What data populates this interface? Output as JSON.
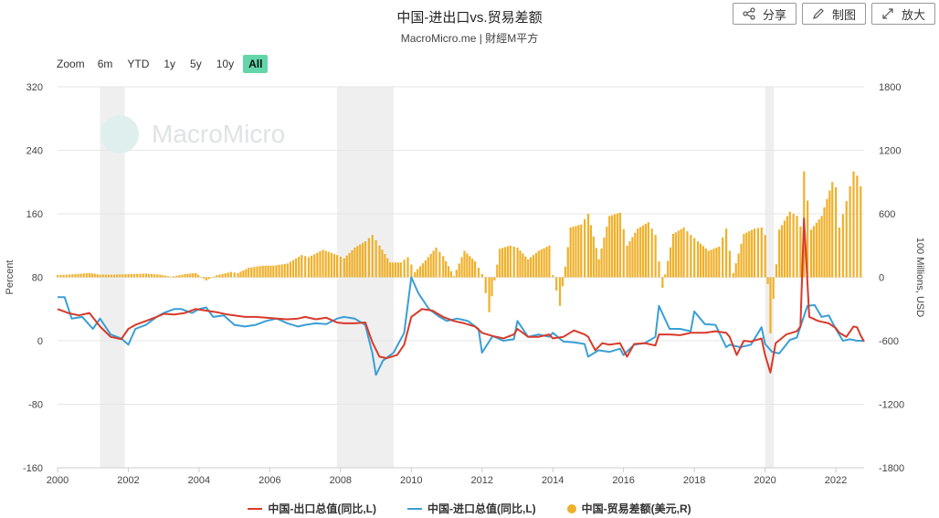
{
  "title": "中国-进出口vs.贸易差额",
  "subtitle": "MacroMicro.me | 財經M平方",
  "watermark": "MacroMicro",
  "buttons": [
    {
      "label": "分享",
      "icon": "share-icon"
    },
    {
      "label": "制图",
      "icon": "pencil-icon"
    },
    {
      "label": "放大",
      "icon": "expand-icon"
    }
  ],
  "zoom": {
    "label": "Zoom",
    "options": [
      "6m",
      "YTD",
      "1y",
      "5y",
      "10y",
      "All"
    ],
    "selected": "All"
  },
  "colors": {
    "export": "#d83a2a",
    "import": "#3a9fd6",
    "balance": "#efb02a",
    "recession": "#efefef",
    "zoom_active": "#62d6a8"
  },
  "chart_data": {
    "type": "line",
    "x_range": [
      2000,
      2022.8
    ],
    "xticks": [
      "2000",
      "2002",
      "2004",
      "2006",
      "2008",
      "2010",
      "2012",
      "2014",
      "2016",
      "2018",
      "2020",
      "2022"
    ],
    "left_axis": {
      "label": "Percent",
      "range": [
        -160,
        320
      ],
      "ticks": [
        "320",
        "240",
        "160",
        "80",
        "0",
        "-80",
        "-160"
      ]
    },
    "right_axis": {
      "label": "100 Millions, USD",
      "range": [
        -1800,
        1800
      ],
      "ticks": [
        "1800",
        "1200",
        "600",
        "0",
        "-600",
        "-1200",
        "-1800"
      ]
    },
    "shaded_periods": [
      [
        2001.2,
        2001.9
      ],
      [
        2007.9,
        2009.5
      ],
      [
        2020.0,
        2020.25
      ]
    ],
    "series": [
      {
        "name": "中国-出口总值(同比,L)",
        "axis": "left",
        "points": [
          [
            2000.0,
            40
          ],
          [
            2000.3,
            35
          ],
          [
            2000.6,
            32
          ],
          [
            2000.9,
            35
          ],
          [
            2001.2,
            18
          ],
          [
            2001.5,
            5
          ],
          [
            2001.8,
            2
          ],
          [
            2002.0,
            15
          ],
          [
            2002.2,
            20
          ],
          [
            2002.5,
            25
          ],
          [
            2002.8,
            30
          ],
          [
            2003.0,
            34
          ],
          [
            2003.3,
            33
          ],
          [
            2003.6,
            35
          ],
          [
            2003.9,
            40
          ],
          [
            2004.2,
            38
          ],
          [
            2004.5,
            36
          ],
          [
            2004.8,
            33
          ],
          [
            2005.0,
            32
          ],
          [
            2005.3,
            30
          ],
          [
            2005.6,
            30
          ],
          [
            2005.9,
            29
          ],
          [
            2006.2,
            28
          ],
          [
            2006.5,
            27
          ],
          [
            2006.8,
            28
          ],
          [
            2007.0,
            30
          ],
          [
            2007.3,
            27
          ],
          [
            2007.6,
            29
          ],
          [
            2007.9,
            23
          ],
          [
            2008.1,
            22
          ],
          [
            2008.4,
            22
          ],
          [
            2008.7,
            23
          ],
          [
            2008.9,
            -2
          ],
          [
            2009.1,
            -20
          ],
          [
            2009.3,
            -22
          ],
          [
            2009.6,
            -18
          ],
          [
            2009.8,
            -5
          ],
          [
            2010.0,
            30
          ],
          [
            2010.3,
            40
          ],
          [
            2010.6,
            38
          ],
          [
            2010.9,
            30
          ],
          [
            2011.2,
            25
          ],
          [
            2011.5,
            22
          ],
          [
            2011.8,
            18
          ],
          [
            2012.0,
            10
          ],
          [
            2012.3,
            6
          ],
          [
            2012.6,
            3
          ],
          [
            2012.9,
            8
          ],
          [
            2013.0,
            15
          ],
          [
            2013.3,
            5
          ],
          [
            2013.6,
            5
          ],
          [
            2013.9,
            8
          ],
          [
            2014.0,
            3
          ],
          [
            2014.3,
            5
          ],
          [
            2014.6,
            13
          ],
          [
            2014.9,
            8
          ],
          [
            2015.0,
            5
          ],
          [
            2015.2,
            -12
          ],
          [
            2015.4,
            -3
          ],
          [
            2015.6,
            -5
          ],
          [
            2015.9,
            -3
          ],
          [
            2016.1,
            -20
          ],
          [
            2016.3,
            -4
          ],
          [
            2016.6,
            -3
          ],
          [
            2016.9,
            -6
          ],
          [
            2017.0,
            8
          ],
          [
            2017.3,
            8
          ],
          [
            2017.6,
            7
          ],
          [
            2017.9,
            10
          ],
          [
            2018.0,
            10
          ],
          [
            2018.3,
            10
          ],
          [
            2018.6,
            12
          ],
          [
            2018.9,
            10
          ],
          [
            2019.0,
            5
          ],
          [
            2019.2,
            -18
          ],
          [
            2019.4,
            0
          ],
          [
            2019.6,
            -1
          ],
          [
            2019.9,
            3
          ],
          [
            2020.0,
            -18
          ],
          [
            2020.15,
            -40
          ],
          [
            2020.3,
            -3
          ],
          [
            2020.6,
            8
          ],
          [
            2020.9,
            12
          ],
          [
            2021.0,
            18
          ],
          [
            2021.1,
            154
          ],
          [
            2021.25,
            30
          ],
          [
            2021.5,
            25
          ],
          [
            2021.8,
            22
          ],
          [
            2022.0,
            16
          ],
          [
            2022.1,
            10
          ],
          [
            2022.3,
            5
          ],
          [
            2022.5,
            18
          ],
          [
            2022.6,
            17
          ],
          [
            2022.7,
            7
          ],
          [
            2022.8,
            -1
          ]
        ]
      },
      {
        "name": "中国-进口总值(同比,L)",
        "axis": "left",
        "points": [
          [
            2000.0,
            55
          ],
          [
            2000.2,
            55
          ],
          [
            2000.4,
            28
          ],
          [
            2000.7,
            30
          ],
          [
            2001.0,
            15
          ],
          [
            2001.2,
            28
          ],
          [
            2001.5,
            8
          ],
          [
            2001.8,
            3
          ],
          [
            2002.0,
            -5
          ],
          [
            2002.2,
            15
          ],
          [
            2002.5,
            20
          ],
          [
            2002.8,
            30
          ],
          [
            2003.0,
            35
          ],
          [
            2003.3,
            40
          ],
          [
            2003.5,
            40
          ],
          [
            2003.8,
            35
          ],
          [
            2004.0,
            40
          ],
          [
            2004.2,
            42
          ],
          [
            2004.4,
            30
          ],
          [
            2004.7,
            32
          ],
          [
            2005.0,
            20
          ],
          [
            2005.3,
            18
          ],
          [
            2005.6,
            20
          ],
          [
            2005.9,
            25
          ],
          [
            2006.2,
            28
          ],
          [
            2006.5,
            22
          ],
          [
            2006.8,
            18
          ],
          [
            2007.0,
            20
          ],
          [
            2007.3,
            22
          ],
          [
            2007.6,
            21
          ],
          [
            2007.9,
            28
          ],
          [
            2008.1,
            30
          ],
          [
            2008.4,
            28
          ],
          [
            2008.7,
            20
          ],
          [
            2008.9,
            -16
          ],
          [
            2009.0,
            -43
          ],
          [
            2009.2,
            -25
          ],
          [
            2009.5,
            -15
          ],
          [
            2009.8,
            10
          ],
          [
            2010.0,
            80
          ],
          [
            2010.2,
            60
          ],
          [
            2010.5,
            40
          ],
          [
            2010.8,
            30
          ],
          [
            2011.0,
            25
          ],
          [
            2011.3,
            28
          ],
          [
            2011.6,
            25
          ],
          [
            2011.9,
            15
          ],
          [
            2012.0,
            -15
          ],
          [
            2012.3,
            6
          ],
          [
            2012.6,
            0
          ],
          [
            2012.9,
            2
          ],
          [
            2013.0,
            25
          ],
          [
            2013.3,
            5
          ],
          [
            2013.6,
            8
          ],
          [
            2013.9,
            5
          ],
          [
            2014.0,
            10
          ],
          [
            2014.3,
            -1
          ],
          [
            2014.6,
            -2
          ],
          [
            2014.9,
            -4
          ],
          [
            2015.0,
            -20
          ],
          [
            2015.3,
            -12
          ],
          [
            2015.6,
            -14
          ],
          [
            2015.9,
            -10
          ],
          [
            2016.0,
            -18
          ],
          [
            2016.3,
            -5
          ],
          [
            2016.6,
            -3
          ],
          [
            2016.9,
            5
          ],
          [
            2017.0,
            44
          ],
          [
            2017.3,
            15
          ],
          [
            2017.6,
            15
          ],
          [
            2017.9,
            12
          ],
          [
            2018.0,
            37
          ],
          [
            2018.3,
            21
          ],
          [
            2018.6,
            20
          ],
          [
            2018.9,
            -8
          ],
          [
            2019.0,
            -5
          ],
          [
            2019.3,
            -8
          ],
          [
            2019.6,
            -5
          ],
          [
            2019.9,
            17
          ],
          [
            2020.0,
            -4
          ],
          [
            2020.2,
            -14
          ],
          [
            2020.4,
            -16
          ],
          [
            2020.7,
            1
          ],
          [
            2020.9,
            4
          ],
          [
            2021.0,
            18
          ],
          [
            2021.2,
            44
          ],
          [
            2021.4,
            45
          ],
          [
            2021.6,
            30
          ],
          [
            2021.8,
            32
          ],
          [
            2022.0,
            15
          ],
          [
            2022.2,
            0
          ],
          [
            2022.4,
            2
          ],
          [
            2022.6,
            0
          ],
          [
            2022.8,
            0
          ]
        ]
      },
      {
        "name": "中国-贸易差额(美元,R)",
        "axis": "right",
        "type": "bar",
        "points": [
          [
            2000.0,
            20
          ],
          [
            2000.5,
            30
          ],
          [
            2000.9,
            40
          ],
          [
            2001.2,
            25
          ],
          [
            2001.6,
            25
          ],
          [
            2002.0,
            30
          ],
          [
            2002.5,
            35
          ],
          [
            2002.9,
            25
          ],
          [
            2003.2,
            5
          ],
          [
            2003.6,
            30
          ],
          [
            2003.9,
            40
          ],
          [
            2004.2,
            -30
          ],
          [
            2004.5,
            20
          ],
          [
            2004.9,
            50
          ],
          [
            2005.1,
            40
          ],
          [
            2005.4,
            90
          ],
          [
            2005.8,
            110
          ],
          [
            2006.1,
            110
          ],
          [
            2006.5,
            130
          ],
          [
            2006.9,
            210
          ],
          [
            2007.1,
            190
          ],
          [
            2007.5,
            260
          ],
          [
            2007.9,
            210
          ],
          [
            2008.1,
            180
          ],
          [
            2008.4,
            280
          ],
          [
            2008.7,
            340
          ],
          [
            2008.9,
            400
          ],
          [
            2009.1,
            300
          ],
          [
            2009.4,
            140
          ],
          [
            2009.7,
            140
          ],
          [
            2009.9,
            190
          ],
          [
            2010.1,
            50
          ],
          [
            2010.4,
            160
          ],
          [
            2010.7,
            280
          ],
          [
            2010.9,
            200
          ],
          [
            2011.2,
            10
          ],
          [
            2011.5,
            250
          ],
          [
            2011.8,
            150
          ],
          [
            2012.0,
            30
          ],
          [
            2012.2,
            -330
          ],
          [
            2012.5,
            270
          ],
          [
            2012.8,
            300
          ],
          [
            2013.0,
            280
          ],
          [
            2013.3,
            170
          ],
          [
            2013.6,
            250
          ],
          [
            2013.9,
            300
          ],
          [
            2014.0,
            20
          ],
          [
            2014.2,
            -270
          ],
          [
            2014.5,
            470
          ],
          [
            2014.8,
            500
          ],
          [
            2015.0,
            600
          ],
          [
            2015.3,
            170
          ],
          [
            2015.6,
            580
          ],
          [
            2015.9,
            610
          ],
          [
            2016.1,
            300
          ],
          [
            2016.4,
            460
          ],
          [
            2016.7,
            520
          ],
          [
            2016.9,
            400
          ],
          [
            2017.1,
            -100
          ],
          [
            2017.4,
            410
          ],
          [
            2017.7,
            470
          ],
          [
            2017.9,
            400
          ],
          [
            2018.1,
            340
          ],
          [
            2018.4,
            250
          ],
          [
            2018.7,
            290
          ],
          [
            2018.9,
            460
          ],
          [
            2019.1,
            40
          ],
          [
            2019.4,
            410
          ],
          [
            2019.7,
            460
          ],
          [
            2019.9,
            470
          ],
          [
            2020.0,
            400
          ],
          [
            2020.15,
            -530
          ],
          [
            2020.4,
            450
          ],
          [
            2020.7,
            620
          ],
          [
            2020.9,
            580
          ],
          [
            2021.0,
            480
          ],
          [
            2021.1,
            1000
          ],
          [
            2021.3,
            450
          ],
          [
            2021.6,
            580
          ],
          [
            2021.9,
            900
          ],
          [
            2022.0,
            850
          ],
          [
            2022.1,
            470
          ],
          [
            2022.3,
            720
          ],
          [
            2022.5,
            1000
          ],
          [
            2022.6,
            960
          ],
          [
            2022.7,
            860
          ]
        ]
      }
    ]
  }
}
